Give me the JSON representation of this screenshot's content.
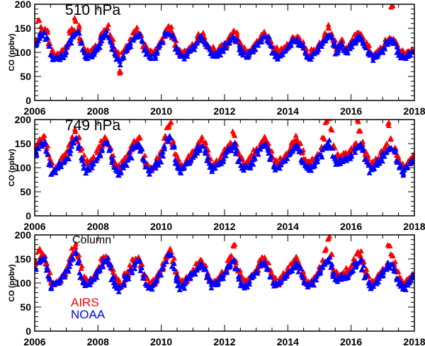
{
  "chart_data": [
    {
      "type": "scatter",
      "title": "510 hPa",
      "ylabel": "CO (ppbv)",
      "xlabel": "",
      "xlim": [
        2006,
        2018
      ],
      "ylim": [
        0,
        200
      ],
      "xticks": [
        "2006",
        "2008",
        "2010",
        "2012",
        "2014",
        "2016",
        "2018"
      ],
      "yticks": [
        "0",
        "50",
        "100",
        "150",
        "200"
      ],
      "x_start": 2006.04,
      "x_step": 0.0833,
      "series": [
        {
          "name": "AIRS",
          "color": "#ff0000",
          "values": [
            125,
            165,
            150,
            145,
            140,
            120,
            100,
            95,
            92,
            98,
            105,
            108,
            118,
            140,
            150,
            165,
            150,
            130,
            110,
            100,
            98,
            102,
            108,
            112,
            120,
            138,
            145,
            150,
            135,
            120,
            105,
            100,
            60,
            98,
            108,
            112,
            125,
            140,
            145,
            140,
            135,
            118,
            105,
            100,
            98,
            100,
            108,
            118,
            128,
            145,
            155,
            148,
            135,
            118,
            105,
            100,
            98,
            102,
            108,
            115,
            118,
            128,
            132,
            135,
            130,
            118,
            108,
            105,
            102,
            105,
            110,
            115,
            118,
            128,
            135,
            140,
            135,
            120,
            108,
            105,
            100,
            102,
            110,
            115,
            122,
            130,
            135,
            138,
            132,
            120,
            108,
            105,
            100,
            102,
            108,
            115,
            116,
            125,
            130,
            132,
            128,
            115,
            106,
            100,
            98,
            102,
            108,
            112,
            120,
            128,
            135,
            150,
            140,
            125,
            110,
            118,
            122,
            112,
            108,
            115,
            122,
            130,
            138,
            135,
            128,
            118,
            108,
            100,
            95,
            98,
            102,
            108,
            112,
            120,
            128,
            198,
            128,
            112,
            102,
            100,
            96,
            98,
            102,
            106
          ]
        },
        {
          "name": "NOAA",
          "color": "#0000ff",
          "values": [
            115,
            130,
            138,
            135,
            128,
            112,
            92,
            88,
            85,
            90,
            95,
            100,
            110,
            125,
            135,
            142,
            138,
            120,
            100,
            90,
            88,
            92,
            100,
            105,
            115,
            128,
            132,
            138,
            125,
            112,
            95,
            85,
            80,
            88,
            100,
            108,
            118,
            130,
            135,
            132,
            125,
            110,
            95,
            90,
            88,
            92,
            100,
            110,
            120,
            135,
            140,
            138,
            128,
            110,
            98,
            92,
            90,
            95,
            100,
            108,
            112,
            120,
            125,
            128,
            122,
            110,
            100,
            95,
            92,
            95,
            100,
            108,
            112,
            120,
            125,
            130,
            125,
            112,
            100,
            95,
            92,
            95,
            102,
            108,
            115,
            122,
            128,
            130,
            125,
            112,
            100,
            95,
            92,
            95,
            100,
            108,
            110,
            118,
            122,
            125,
            120,
            108,
            98,
            92,
            90,
            95,
            100,
            105,
            112,
            120,
            125,
            132,
            128,
            115,
            100,
            110,
            115,
            105,
            100,
            108,
            115,
            122,
            128,
            128,
            120,
            110,
            100,
            92,
            88,
            90,
            95,
            100,
            105,
            115,
            122,
            125,
            118,
            105,
            95,
            92,
            88,
            90,
            95,
            98
          ]
        }
      ]
    },
    {
      "type": "scatter",
      "title": "749 hPa",
      "ylabel": "CO (ppbv)",
      "xlabel": "",
      "xlim": [
        2006,
        2018
      ],
      "ylim": [
        0,
        200
      ],
      "xticks": [
        "2006",
        "2008",
        "2010",
        "2012",
        "2014",
        "2016",
        "2018"
      ],
      "yticks": [
        "0",
        "50",
        "100",
        "150",
        "200"
      ],
      "x_start": 2006.04,
      "x_step": 0.0833,
      "series": [
        {
          "name": "AIRS",
          "color": "#ff0000",
          "values": [
            140,
            155,
            150,
            165,
            145,
            125,
            105,
            90,
            100,
            110,
            118,
            125,
            135,
            150,
            160,
            175,
            160,
            140,
            120,
            110,
            108,
            115,
            122,
            130,
            140,
            150,
            158,
            155,
            145,
            125,
            110,
            100,
            98,
            108,
            118,
            128,
            138,
            150,
            155,
            160,
            140,
            125,
            110,
            100,
            98,
            105,
            115,
            125,
            140,
            160,
            185,
            195,
            150,
            130,
            115,
            105,
            100,
            110,
            120,
            128,
            135,
            145,
            150,
            160,
            145,
            130,
            118,
            108,
            105,
            112,
            120,
            128,
            135,
            145,
            150,
            170,
            148,
            130,
            118,
            110,
            108,
            115,
            122,
            130,
            138,
            148,
            155,
            160,
            150,
            135,
            120,
            112,
            108,
            115,
            122,
            130,
            135,
            145,
            150,
            160,
            148,
            130,
            118,
            110,
            108,
            112,
            120,
            128,
            140,
            160,
            195,
            200,
            180,
            140,
            125,
            118,
            120,
            125,
            130,
            135,
            140,
            150,
            200,
            175,
            148,
            132,
            118,
            110,
            108,
            112,
            120,
            128,
            135,
            145,
            190,
            160,
            140,
            125,
            115,
            105,
            100,
            110,
            118,
            125
          ]
        },
        {
          "name": "NOAA",
          "color": "#0000ff",
          "values": [
            130,
            140,
            145,
            148,
            135,
            110,
            85,
            95,
            100,
            105,
            108,
            112,
            120,
            135,
            150,
            160,
            145,
            120,
            100,
            95,
            98,
            105,
            110,
            118,
            128,
            140,
            148,
            150,
            135,
            115,
            100,
            90,
            92,
            100,
            108,
            118,
            125,
            138,
            145,
            148,
            135,
            115,
            100,
            92,
            95,
            100,
            108,
            115,
            130,
            145,
            155,
            160,
            140,
            115,
            100,
            95,
            98,
            105,
            110,
            118,
            125,
            135,
            140,
            145,
            132,
            115,
            105,
            98,
            100,
            105,
            110,
            118,
            125,
            135,
            140,
            148,
            135,
            118,
            105,
            100,
            100,
            105,
            112,
            120,
            128,
            138,
            145,
            148,
            135,
            118,
            105,
            100,
            100,
            105,
            112,
            118,
            125,
            135,
            140,
            145,
            132,
            115,
            105,
            98,
            100,
            105,
            110,
            118,
            128,
            138,
            145,
            150,
            138,
            120,
            108,
            110,
            115,
            112,
            115,
            120,
            128,
            138,
            145,
            148,
            135,
            118,
            105,
            95,
            98,
            105,
            110,
            118,
            125,
            135,
            140,
            142,
            130,
            112,
            100,
            90,
            95,
            100,
            108,
            112
          ]
        }
      ]
    },
    {
      "type": "scatter",
      "title": "Column",
      "ylabel": "CO (ppbv)",
      "xlabel": "",
      "xlim": [
        2006,
        2018
      ],
      "ylim": [
        0,
        200
      ],
      "xticks": [
        "2006",
        "2008",
        "2010",
        "2012",
        "2014",
        "2016",
        "2018"
      ],
      "yticks": [
        "0",
        "50",
        "100",
        "150",
        "200"
      ],
      "legend": [
        "AIRS",
        "NOAA"
      ],
      "legend_position": "bottom-left",
      "x_start": 2006.04,
      "x_step": 0.0833,
      "series": [
        {
          "name": "AIRS",
          "color": "#ff0000",
          "values": [
            145,
            165,
            160,
            155,
            140,
            120,
            100,
            95,
            98,
            105,
            112,
            120,
            130,
            150,
            165,
            175,
            155,
            135,
            115,
            105,
            102,
            108,
            115,
            122,
            132,
            145,
            150,
            155,
            140,
            122,
            108,
            100,
            98,
            105,
            115,
            122,
            132,
            145,
            150,
            150,
            138,
            120,
            108,
            100,
            98,
            105,
            112,
            122,
            135,
            150,
            160,
            170,
            145,
            125,
            110,
            102,
            100,
            108,
            115,
            122,
            128,
            138,
            142,
            145,
            135,
            120,
            110,
            105,
            102,
            108,
            115,
            122,
            128,
            140,
            150,
            180,
            140,
            122,
            110,
            105,
            102,
            108,
            115,
            122,
            130,
            140,
            148,
            150,
            140,
            125,
            112,
            105,
            102,
            108,
            115,
            122,
            128,
            138,
            145,
            150,
            138,
            122,
            110,
            102,
            100,
            105,
            112,
            120,
            132,
            148,
            165,
            190,
            160,
            130,
            118,
            112,
            115,
            120,
            125,
            130,
            135,
            145,
            160,
            160,
            142,
            125,
            112,
            105,
            102,
            108,
            112,
            120,
            128,
            140,
            175,
            160,
            140,
            122,
            110,
            100,
            98,
            105,
            112,
            118
          ]
        },
        {
          "name": "NOAA",
          "color": "#0000ff",
          "values": [
            130,
            145,
            150,
            148,
            132,
            110,
            88,
            95,
            100,
            105,
            110,
            118,
            125,
            140,
            155,
            162,
            140,
            115,
            98,
            92,
            95,
            102,
            110,
            118,
            125,
            138,
            145,
            148,
            132,
            112,
            98,
            88,
            90,
            98,
            108,
            115,
            122,
            135,
            142,
            145,
            130,
            110,
            98,
            90,
            92,
            98,
            105,
            115,
            128,
            145,
            155,
            158,
            135,
            112,
            98,
            92,
            95,
            102,
            110,
            115,
            120,
            130,
            135,
            138,
            128,
            112,
            102,
            95,
            98,
            102,
            108,
            115,
            120,
            132,
            138,
            145,
            130,
            112,
            100,
            95,
            98,
            102,
            110,
            115,
            125,
            135,
            140,
            142,
            130,
            112,
            100,
            95,
            98,
            102,
            110,
            115,
            120,
            130,
            135,
            140,
            128,
            112,
            100,
            95,
            98,
            102,
            108,
            115,
            125,
            135,
            142,
            148,
            135,
            118,
            105,
            108,
            112,
            110,
            112,
            118,
            125,
            135,
            140,
            145,
            130,
            112,
            100,
            92,
            95,
            102,
            108,
            115,
            120,
            130,
            135,
            138,
            125,
            108,
            98,
            88,
            92,
            98,
            105,
            110
          ]
        }
      ]
    }
  ]
}
